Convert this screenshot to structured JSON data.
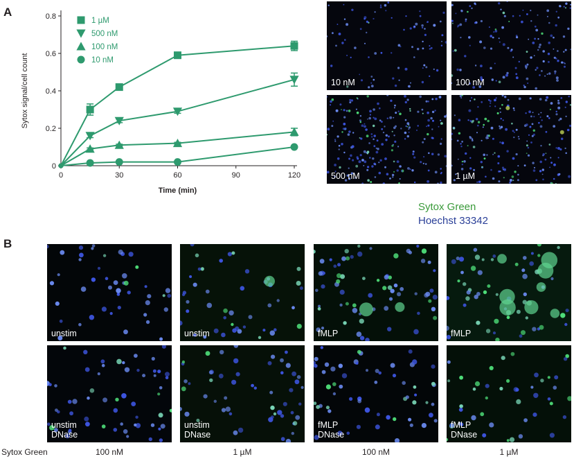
{
  "panel_a_label": "A",
  "panel_b_label": "B",
  "chart_data": {
    "type": "line",
    "xlabel": "Time (min)",
    "ylabel": "Sytox signal/cell count",
    "x": [
      0,
      15,
      30,
      60,
      120
    ],
    "xlim": [
      0,
      120
    ],
    "ylim": [
      0,
      0.8
    ],
    "xticks": [
      "0",
      "30",
      "60",
      "90",
      "120"
    ],
    "yticks": [
      "0",
      "0.2",
      "0.4",
      "0.6",
      "0.8"
    ],
    "legend_position": "top-left",
    "color": "#2e9a6e",
    "series": [
      {
        "name": "1 µM",
        "marker": "square",
        "values": [
          0,
          0.3,
          0.42,
          0.59,
          0.64
        ],
        "errors": [
          0,
          0.03,
          0.01,
          0.01,
          0.025
        ]
      },
      {
        "name": "500 nM",
        "marker": "triangle-down",
        "values": [
          0,
          0.16,
          0.24,
          0.29,
          0.46
        ],
        "errors": [
          0,
          0.01,
          0.01,
          0.01,
          0.035
        ]
      },
      {
        "name": "100 nM",
        "marker": "triangle-up",
        "values": [
          0,
          0.09,
          0.11,
          0.12,
          0.18
        ],
        "errors": [
          0,
          0.005,
          0.005,
          0.005,
          0.02
        ]
      },
      {
        "name": "10 nM",
        "marker": "circle",
        "values": [
          0,
          0.015,
          0.02,
          0.02,
          0.1
        ],
        "errors": [
          0,
          0.003,
          0.003,
          0.003,
          0.005
        ]
      }
    ]
  },
  "panel_a_images": [
    "10 nM",
    "100 nM",
    "500 nM",
    "1 µM"
  ],
  "stain_legend": {
    "sytox": "Sytox Green",
    "hoechst": "Hoechst 33342",
    "sytox_color": "#3a9a3a",
    "hoechst_color": "#2a3f98"
  },
  "panel_b_images": {
    "row1": [
      "unstim",
      "unstim",
      "fMLP",
      "fMLP"
    ],
    "row2": [
      "unstim\nDNase",
      "unstim\nDNase",
      "fMLP\nDNase",
      "fMLP\nDNase"
    ]
  },
  "bottom_row": {
    "label": "Sytox Green",
    "concentrations": [
      "100 nM",
      "1 µM",
      "100 nM",
      "1 µM"
    ]
  }
}
